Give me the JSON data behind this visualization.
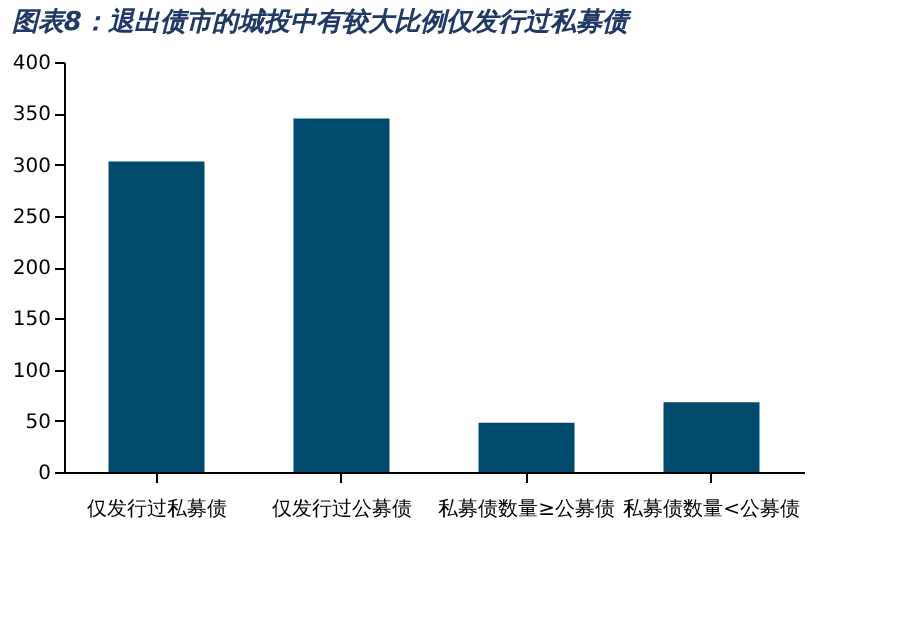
{
  "chart_data": {
    "type": "bar",
    "title": "图表8：退出债市的城投中有较大比例仅发行过私募债",
    "categories": [
      "仅发行过私募债",
      "仅发行过公募债",
      "私募债数量≥公募债",
      "私募债数量<公募债"
    ],
    "values": [
      303,
      345,
      48,
      68
    ],
    "color": "#004a6e",
    "ylim": [
      0,
      400
    ],
    "yticks": [
      0,
      50,
      100,
      150,
      200,
      250,
      300,
      350,
      400
    ],
    "grid": false
  }
}
